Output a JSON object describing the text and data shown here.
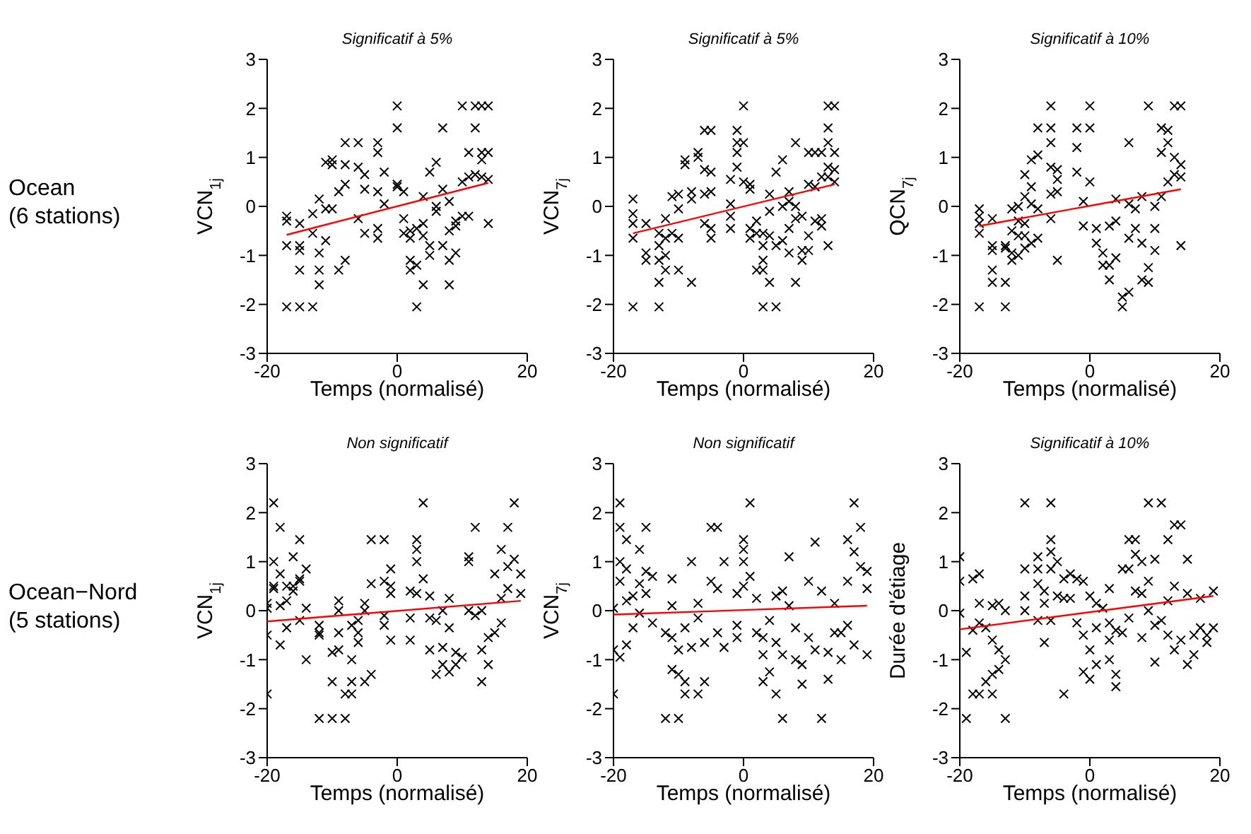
{
  "chart_data": [
    {
      "type": "scatter",
      "title": "Significatif à 5%",
      "xlabel": "Temps (normalisé)",
      "ylabel": "VCN$_{1j}$",
      "annotations": [
        "Ocean\n(6 stations)"
      ],
      "xlim": [
        -20,
        20
      ],
      "xticks": [
        -20,
        0,
        20
      ],
      "ylim": [
        -3,
        3
      ],
      "yticks": [
        -3,
        -2,
        -1,
        0,
        1,
        2,
        3
      ],
      "series": [
        {
          "type": "scatter",
          "color": "#000000",
          "marker": "cross",
          "x": [
            -17,
            -17,
            -17,
            -17,
            -15,
            -15,
            -15,
            -15,
            -15,
            -13,
            -13,
            -13,
            -12,
            -12,
            -12,
            -12,
            -11,
            -11,
            -11,
            -10,
            -10,
            -10,
            -9,
            -9,
            -8,
            -8,
            -8,
            -8,
            -6,
            -6,
            -5,
            -5,
            -5,
            -6,
            -3,
            -3,
            -3,
            -3,
            -3,
            -2,
            -2,
            0,
            0,
            0,
            0,
            1,
            1,
            1,
            2,
            2,
            2,
            2,
            3,
            3,
            3,
            4,
            4,
            4,
            4,
            5,
            5,
            5,
            6,
            6,
            6,
            7,
            7,
            7,
            8,
            8,
            8,
            8,
            9,
            9,
            9,
            10,
            10,
            10,
            11,
            11,
            11,
            12,
            12,
            12,
            13,
            13,
            13,
            13,
            14,
            14,
            14,
            14
          ],
          "values": [
            -0.2,
            -0.3,
            -0.8,
            -2.05,
            -0.8,
            -0.9,
            -0.35,
            -1.3,
            -2.05,
            -2.05,
            -0.55,
            -0.15,
            -1.6,
            -1.3,
            -0.95,
            0.15,
            -0.05,
            0.9,
            -0.7,
            0.85,
            0.95,
            -0.05,
            0.3,
            -1.3,
            1.3,
            0.85,
            0.45,
            -1.1,
            1.3,
            0.8,
            0.65,
            0.35,
            -0.55,
            -0.25,
            1.3,
            1.1,
            0.3,
            -0.45,
            -0.65,
            0.7,
            0.05,
            2.05,
            1.6,
            0.45,
            0.4,
            0.3,
            -0.25,
            -0.55,
            -0.5,
            -0.65,
            -1.1,
            -1.3,
            -2.05,
            -0.45,
            -1.2,
            -0.35,
            0.2,
            -0.6,
            -1.6,
            -0.8,
            -1.0,
            0.7,
            0.9,
            0.0,
            -0.1,
            1.6,
            0.35,
            -0.8,
            -1.6,
            -1.1,
            -0.5,
            0.1,
            -0.3,
            -0.4,
            -0.95,
            2.05,
            0.5,
            -0.2,
            1.1,
            0.6,
            -0.2,
            1.6,
            2.05,
            0.65,
            2.05,
            1.1,
            0.95,
            0.6,
            0.55,
            -0.35,
            1.1,
            2.05
          ]
        },
        {
          "type": "line",
          "color": "#ff0000",
          "marker": "none",
          "x": [
            -17,
            14
          ],
          "values": [
            -0.58,
            0.48
          ]
        }
      ]
    },
    {
      "type": "scatter",
      "title": "Significatif à 5%",
      "xlabel": "Temps (normalisé)",
      "ylabel": "VCN$_{7j}$",
      "xlim": [
        -20,
        20
      ],
      "xticks": [
        -20,
        0,
        20
      ],
      "ylim": [
        -3,
        3
      ],
      "yticks": [
        -3,
        -2,
        -1,
        0,
        1,
        2,
        3
      ],
      "series": [
        {
          "type": "scatter",
          "color": "#000000",
          "marker": "cross",
          "x": [
            -17,
            -17,
            -17,
            -17,
            -17,
            -15,
            -15,
            -15,
            -13,
            -13,
            -13,
            -13,
            -13,
            -12,
            -12,
            -12,
            -12,
            -11,
            -11,
            -10,
            -10,
            -10,
            -10,
            -9,
            -9,
            -8,
            -8,
            -8,
            -7,
            -7,
            -6,
            -5,
            -6,
            -5,
            -6,
            -5,
            -6,
            -5,
            -5,
            -2,
            -2,
            -2,
            -2,
            -1,
            -1,
            -1,
            -1,
            0,
            0,
            0,
            1,
            1,
            1,
            1,
            2,
            2,
            2,
            3,
            3,
            3,
            3,
            3,
            4,
            4,
            4,
            4,
            5,
            5,
            5,
            6,
            6,
            6,
            7,
            7,
            7,
            7,
            8,
            8,
            8,
            8,
            9,
            9,
            9,
            10,
            10,
            10,
            10,
            11,
            11,
            11,
            12,
            12,
            12,
            12,
            13,
            13,
            13,
            13,
            13,
            13,
            14,
            14,
            14,
            14
          ],
          "values": [
            0.15,
            -0.15,
            -0.35,
            -0.65,
            -2.05,
            -0.35,
            -0.95,
            -1.1,
            -0.55,
            -0.8,
            -1.1,
            -1.55,
            -2.05,
            -0.65,
            -1.0,
            -1.3,
            -0.25,
            0.2,
            -0.55,
            0.25,
            -0.05,
            -0.65,
            -1.3,
            0.85,
            0.95,
            0.3,
            0.15,
            -1.55,
            1.0,
            1.1,
            1.55,
            1.55,
            0.75,
            0.7,
            0.25,
            0.3,
            -0.35,
            -0.45,
            -0.65,
            0.55,
            0.05,
            -0.2,
            -0.45,
            1.55,
            1.3,
            1.1,
            0.8,
            2.05,
            1.3,
            0.5,
            0.45,
            0.35,
            -0.45,
            -0.65,
            -0.3,
            -0.55,
            -1.3,
            -0.55,
            -0.8,
            -1.1,
            -1.3,
            -2.05,
            -1.55,
            -0.6,
            -0.1,
            0.25,
            -2.05,
            -0.8,
            0.7,
            0.95,
            -0.7,
            0.0,
            0.3,
            0.1,
            -0.45,
            -0.95,
            1.3,
            0.0,
            -0.25,
            -1.55,
            -0.9,
            -1.1,
            -0.2,
            1.1,
            0.45,
            -0.9,
            -0.6,
            1.1,
            0.4,
            -0.3,
            1.1,
            0.6,
            -0.25,
            -0.4,
            2.05,
            1.6,
            1.3,
            0.8,
            0.6,
            -0.8,
            2.05,
            1.1,
            0.75,
            0.5
          ]
        },
        {
          "type": "line",
          "color": "#ff0000",
          "marker": "none",
          "x": [
            -17,
            14
          ],
          "values": [
            -0.55,
            0.45
          ]
        }
      ]
    },
    {
      "type": "scatter",
      "title": "Significatif à 10%",
      "xlabel": "Temps (normalisé)",
      "ylabel": "QCN$_{7j}$",
      "xlim": [
        -20,
        20
      ],
      "xticks": [
        -20,
        0,
        20
      ],
      "ylim": [
        -3,
        3
      ],
      "yticks": [
        -3,
        -2,
        -1,
        0,
        1,
        2,
        3
      ],
      "series": [
        {
          "type": "scatter",
          "color": "#000000",
          "marker": "cross",
          "x": [
            -17,
            -17,
            -17,
            -17,
            -17,
            -15,
            -15,
            -15,
            -15,
            -15,
            -13,
            -13,
            -13,
            -13,
            -12,
            -12,
            -12,
            -12,
            -11,
            -11,
            -11,
            -11,
            -10,
            -10,
            -10,
            -10,
            -10,
            -9,
            -9,
            -9,
            -9,
            -8,
            -8,
            -8,
            -8,
            -6,
            -6,
            -6,
            -6,
            -6,
            -5,
            -5,
            -5,
            -5,
            -6,
            -2,
            -2,
            -2,
            -1,
            -1,
            0,
            0,
            0,
            1,
            1,
            2,
            2,
            3,
            3,
            3,
            4,
            4,
            4,
            5,
            5,
            6,
            6,
            6,
            6,
            7,
            7,
            8,
            8,
            8,
            9,
            9,
            10,
            10,
            11,
            11,
            12,
            12,
            12,
            13,
            13,
            13,
            14,
            14,
            14,
            14,
            10,
            9,
            11
          ],
          "values": [
            -0.05,
            -0.2,
            -0.35,
            -0.55,
            -2.05,
            -0.25,
            -0.8,
            -0.9,
            -1.3,
            -1.55,
            -1.55,
            -0.8,
            -0.85,
            -2.05,
            -0.95,
            -1.1,
            -0.5,
            -0.05,
            0.0,
            -0.3,
            -0.6,
            -1.0,
            0.2,
            0.65,
            -0.35,
            -0.6,
            -0.85,
            0.95,
            0.4,
            0.05,
            -0.75,
            1.05,
            1.6,
            -0.05,
            -0.65,
            1.6,
            1.3,
            0.8,
            0.25,
            -0.25,
            0.75,
            0.55,
            0.3,
            -1.1,
            2.05,
            1.6,
            1.2,
            0.7,
            0.1,
            -0.4,
            2.05,
            1.6,
            0.5,
            -0.45,
            -0.75,
            -0.95,
            -1.2,
            -1.2,
            -1.5,
            -0.4,
            -0.3,
            0.15,
            -1.05,
            -1.85,
            -2.05,
            -1.75,
            -0.65,
            1.3,
            0.05,
            -0.05,
            -0.45,
            0.2,
            -0.75,
            -1.5,
            -1.55,
            -1.25,
            -0.45,
            0.0,
            1.1,
            0.2,
            1.3,
            1.55,
            0.5,
            0.65,
            2.05,
            1.0,
            2.05,
            0.85,
            0.6,
            -0.8,
            -0.9,
            2.05,
            1.6
          ]
        },
        {
          "type": "line",
          "color": "#ff0000",
          "marker": "none",
          "x": [
            -17,
            14
          ],
          "values": [
            -0.4,
            0.35
          ]
        }
      ]
    },
    {
      "type": "scatter",
      "title": "Non significatif",
      "xlabel": "Temps (normalisé)",
      "ylabel": "VCN$_{1j}$",
      "annotations": [
        "Ocean−Nord\n(5 stations)"
      ],
      "xlim": [
        -20,
        20
      ],
      "xticks": [
        -20,
        0,
        20
      ],
      "ylim": [
        -3,
        3
      ],
      "yticks": [
        -3,
        -2,
        -1,
        0,
        1,
        2,
        3
      ],
      "series": [
        {
          "type": "scatter",
          "color": "#000000",
          "marker": "cross",
          "x": [
            -20,
            -20,
            -20,
            -20,
            -19,
            -19,
            -19,
            -19,
            -18,
            -18,
            -18,
            -18,
            -17,
            -17,
            -17,
            -16,
            -16,
            -16,
            -15,
            -15,
            -15,
            -15,
            -14,
            -14,
            -14,
            -12,
            -12,
            -12,
            -12,
            -10,
            -10,
            -10,
            -9,
            -9,
            -9,
            -9,
            -8,
            -8,
            -7,
            -7,
            -7,
            -7,
            -6,
            -6,
            -6,
            -5,
            -5,
            -5,
            -4,
            -4,
            -4,
            -2,
            -2,
            -2,
            -2,
            -1,
            -1,
            -1,
            -1,
            2,
            2,
            2,
            3,
            3,
            3,
            3,
            4,
            4,
            5,
            5,
            5,
            6,
            6,
            7,
            7,
            7,
            8,
            8,
            8,
            9,
            9,
            10,
            11,
            11,
            11,
            12,
            12,
            13,
            13,
            13,
            14,
            14,
            15,
            15,
            16,
            16,
            16,
            17,
            17,
            17,
            18,
            18,
            19,
            19
          ],
          "values": [
            -1.7,
            -0.5,
            0.05,
            0.15,
            2.2,
            1.0,
            0.45,
            0.5,
            1.7,
            0.75,
            0.1,
            -0.7,
            0.2,
            0.5,
            -0.35,
            1.1,
            0.5,
            0.4,
            1.45,
            0.65,
            0.6,
            -0.2,
            0.85,
            0.05,
            -1.0,
            -0.3,
            -0.45,
            -0.5,
            -2.2,
            -2.2,
            -0.85,
            -1.45,
            0.2,
            0.0,
            -0.45,
            -0.8,
            -1.7,
            -2.2,
            -1.7,
            -1.45,
            -1.0,
            -0.3,
            -0.2,
            -0.45,
            -0.65,
            0.15,
            0.0,
            -1.45,
            1.45,
            0.55,
            -1.3,
            1.45,
            0.6,
            -0.1,
            -0.3,
            0.85,
            0.5,
            0.35,
            -0.6,
            0.4,
            -0.15,
            -0.6,
            1.45,
            1.25,
            1.0,
            0.35,
            2.2,
            0.65,
            0.3,
            -0.15,
            -0.8,
            -0.2,
            -1.3,
            0.0,
            -0.75,
            -1.1,
            0.25,
            -0.35,
            -1.25,
            -0.85,
            -1.1,
            -0.95,
            1.1,
            1.0,
            0.0,
            1.7,
            -0.1,
            -0.8,
            -1.45,
            0.0,
            -0.55,
            -1.1,
            0.75,
            -0.45,
            -0.25,
            1.25,
            0.25,
            1.7,
            0.9,
            0.45,
            2.2,
            1.05,
            0.75,
            0.35
          ]
        },
        {
          "type": "line",
          "color": "#ff0000",
          "marker": "none",
          "x": [
            -20,
            19
          ],
          "values": [
            -0.22,
            0.2
          ]
        }
      ]
    },
    {
      "type": "scatter",
      "title": "Non significatif",
      "xlabel": "Temps (normalisé)",
      "ylabel": "VCN$_{7j}$",
      "xlim": [
        -20,
        20
      ],
      "xticks": [
        -20,
        0,
        20
      ],
      "ylim": [
        -3,
        3
      ],
      "yticks": [
        -3,
        -2,
        -1,
        0,
        1,
        2,
        3
      ],
      "series": [
        {
          "type": "scatter",
          "color": "#000000",
          "marker": "cross",
          "x": [
            -20,
            -20,
            -20,
            -19,
            -19,
            -19,
            -19,
            -19,
            -18,
            -18,
            -18,
            -18,
            -17,
            -17,
            -16,
            -16,
            -16,
            -15,
            -15,
            -15,
            -14,
            -14,
            -12,
            -12,
            -11,
            -11,
            -11,
            -11,
            -10,
            -10,
            -10,
            -9,
            -9,
            -9,
            -8,
            -8,
            -7,
            -7,
            -7,
            -6,
            -6,
            -5,
            -5,
            -4,
            -4,
            -4,
            -3,
            -3,
            -1,
            -1,
            -1,
            0,
            0,
            0,
            0,
            1,
            1,
            2,
            2,
            3,
            3,
            3,
            4,
            4,
            5,
            5,
            5,
            6,
            6,
            6,
            7,
            7,
            8,
            8,
            9,
            9,
            10,
            10,
            11,
            11,
            12,
            12,
            13,
            13,
            14,
            14,
            15,
            15,
            16,
            16,
            16,
            17,
            17,
            17,
            18,
            18,
            19,
            19,
            19
          ],
          "values": [
            0.05,
            -0.8,
            -1.7,
            2.2,
            1.7,
            1.0,
            0.6,
            -0.95,
            1.45,
            0.85,
            0.2,
            -0.7,
            0.3,
            -0.35,
            1.25,
            0.55,
            -0.05,
            1.7,
            0.8,
            0.35,
            0.7,
            -0.25,
            -0.45,
            -2.2,
            0.65,
            0.1,
            -0.55,
            -1.2,
            -1.3,
            -0.8,
            -2.2,
            -1.45,
            -1.7,
            -0.35,
            -0.75,
            1.0,
            0.15,
            -0.15,
            -1.7,
            -0.65,
            -1.45,
            1.7,
            0.6,
            1.7,
            0.45,
            -0.45,
            1.0,
            -0.75,
            0.35,
            -0.3,
            -0.55,
            1.45,
            1.25,
            1.0,
            0.5,
            2.2,
            0.7,
            0.25,
            -0.45,
            -0.55,
            -1.45,
            -0.9,
            -1.25,
            -0.2,
            -0.65,
            0.3,
            -1.7,
            -0.9,
            -2.2,
            0.4,
            1.1,
            0.1,
            -1.0,
            -0.35,
            -1.5,
            -1.1,
            0.6,
            -0.55,
            1.4,
            -0.8,
            0.4,
            -2.2,
            -0.85,
            -1.4,
            0.15,
            -0.45,
            -0.45,
            -1.0,
            1.45,
            -0.3,
            0.6,
            2.2,
            1.2,
            -0.7,
            1.7,
            0.9,
            0.8,
            0.45,
            -0.9
          ]
        },
        {
          "type": "line",
          "color": "#ff0000",
          "marker": "none",
          "x": [
            -20,
            19
          ],
          "values": [
            -0.08,
            0.1
          ]
        }
      ]
    },
    {
      "type": "scatter",
      "title": "Significatif à 10%",
      "xlabel": "Temps (normalisé)",
      "ylabel": "Durée d'étiage",
      "xlim": [
        -20,
        20
      ],
      "xticks": [
        -20,
        0,
        20
      ],
      "ylim": [
        -3,
        3
      ],
      "yticks": [
        -3,
        -2,
        -1,
        0,
        1,
        2,
        3
      ],
      "series": [
        {
          "type": "scatter",
          "color": "#000000",
          "marker": "cross",
          "x": [
            -20,
            -20,
            -20,
            -19,
            -19,
            -18,
            -18,
            -18,
            -17,
            -17,
            -17,
            -17,
            -16,
            -16,
            -15,
            -15,
            -15,
            -15,
            -14,
            -14,
            -14,
            -13,
            -13,
            -13,
            -10,
            -10,
            -10,
            -10,
            -8,
            -8,
            -8,
            -8,
            -7,
            -7,
            -7,
            -6,
            -6,
            -6,
            -6,
            -6,
            -5,
            -5,
            -4,
            -4,
            -4,
            -3,
            -3,
            -2,
            -2,
            -1,
            -1,
            -1,
            0,
            0,
            0,
            1,
            1,
            1,
            2,
            3,
            3,
            3,
            3,
            4,
            4,
            4,
            5,
            5,
            6,
            6,
            6,
            7,
            7,
            7,
            8,
            8,
            8,
            9,
            9,
            9,
            10,
            10,
            10,
            11,
            11,
            12,
            12,
            12,
            13,
            13,
            13,
            14,
            14,
            15,
            15,
            15,
            16,
            16,
            17,
            17,
            18,
            18,
            19,
            19
          ],
          "values": [
            1.1,
            0.6,
            -0.05,
            -0.85,
            -2.2,
            -1.7,
            -0.4,
            0.65,
            0.75,
            0.15,
            -0.25,
            -1.7,
            -1.45,
            -0.35,
            -1.7,
            -0.6,
            -1.3,
            0.1,
            0.15,
            -1.2,
            -0.8,
            -1.0,
            -2.2,
            0.0,
            2.2,
            0.85,
            0.3,
            0.0,
            1.1,
            0.55,
            0.85,
            -0.2,
            0.4,
            -0.65,
            0.15,
            2.2,
            1.45,
            1.2,
            0.85,
            -0.2,
            1.0,
            0.3,
            0.65,
            0.25,
            -1.7,
            0.75,
            0.25,
            0.65,
            -0.25,
            0.6,
            -0.5,
            -1.25,
            0.3,
            -0.8,
            -1.4,
            0.15,
            -0.35,
            -1.1,
            0.05,
            0.45,
            -0.25,
            -0.6,
            -1.0,
            -0.4,
            -1.3,
            -1.55,
            0.85,
            -0.45,
            1.45,
            0.85,
            -0.15,
            1.45,
            1.15,
            0.4,
            1.0,
            0.35,
            -0.55,
            2.2,
            0.6,
            0.0,
            1.05,
            -0.3,
            -1.05,
            2.2,
            -0.2,
            1.45,
            0.2,
            -0.5,
            1.75,
            0.5,
            -0.8,
            1.75,
            -0.6,
            1.05,
            0.35,
            -1.1,
            -0.5,
            -0.9,
            -0.35,
            0.25,
            -0.5,
            -0.65,
            0.4,
            -0.35
          ]
        },
        {
          "type": "line",
          "color": "#ff0000",
          "marker": "none",
          "x": [
            -20,
            19
          ],
          "values": [
            -0.38,
            0.3
          ]
        }
      ]
    }
  ]
}
